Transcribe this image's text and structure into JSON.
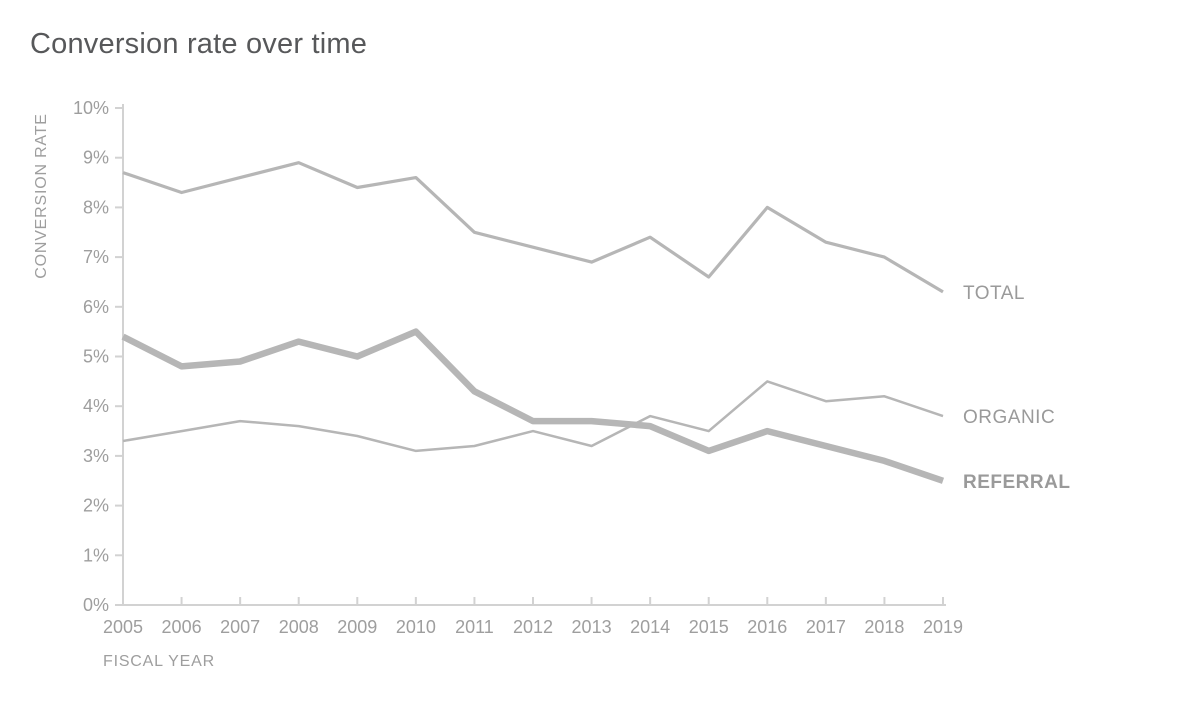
{
  "chart_data": {
    "type": "line",
    "title": "Conversion rate over time",
    "xlabel": "FISCAL YEAR",
    "ylabel": "CONVERSION RATE",
    "categories": [
      "2005",
      "2006",
      "2007",
      "2008",
      "2009",
      "2010",
      "2011",
      "2012",
      "2013",
      "2014",
      "2015",
      "2016",
      "2017",
      "2018",
      "2019"
    ],
    "y_ticks": [
      "0%",
      "1%",
      "2%",
      "3%",
      "4%",
      "5%",
      "6%",
      "7%",
      "8%",
      "9%",
      "10%"
    ],
    "ylim": [
      0,
      10
    ],
    "y_unit": "%",
    "grid": "off",
    "legend_position": "line-end-labels",
    "series": [
      {
        "name": "TOTAL",
        "values": [
          8.7,
          8.3,
          8.6,
          8.9,
          8.4,
          8.6,
          7.5,
          7.2,
          6.9,
          7.4,
          6.6,
          8.0,
          7.3,
          7.0,
          6.3
        ],
        "emphasis": "normal"
      },
      {
        "name": "ORGANIC",
        "values": [
          3.3,
          3.5,
          3.7,
          3.6,
          3.4,
          3.1,
          3.2,
          3.5,
          3.2,
          3.8,
          3.5,
          4.5,
          4.1,
          4.2,
          3.8
        ],
        "emphasis": "normal"
      },
      {
        "name": "REFERRAL",
        "values": [
          5.4,
          4.8,
          4.9,
          5.3,
          5.0,
          5.5,
          4.3,
          3.7,
          3.7,
          3.6,
          3.1,
          3.5,
          3.2,
          2.9,
          2.5
        ],
        "emphasis": "bold"
      }
    ],
    "colors": {
      "line": "#b6b6b6",
      "axis": "#d2d2d2",
      "tick_text": "#9e9e9e",
      "series_label_text": "#9a9a9a",
      "title_text": "#57585a",
      "background": "#ffffff"
    }
  }
}
